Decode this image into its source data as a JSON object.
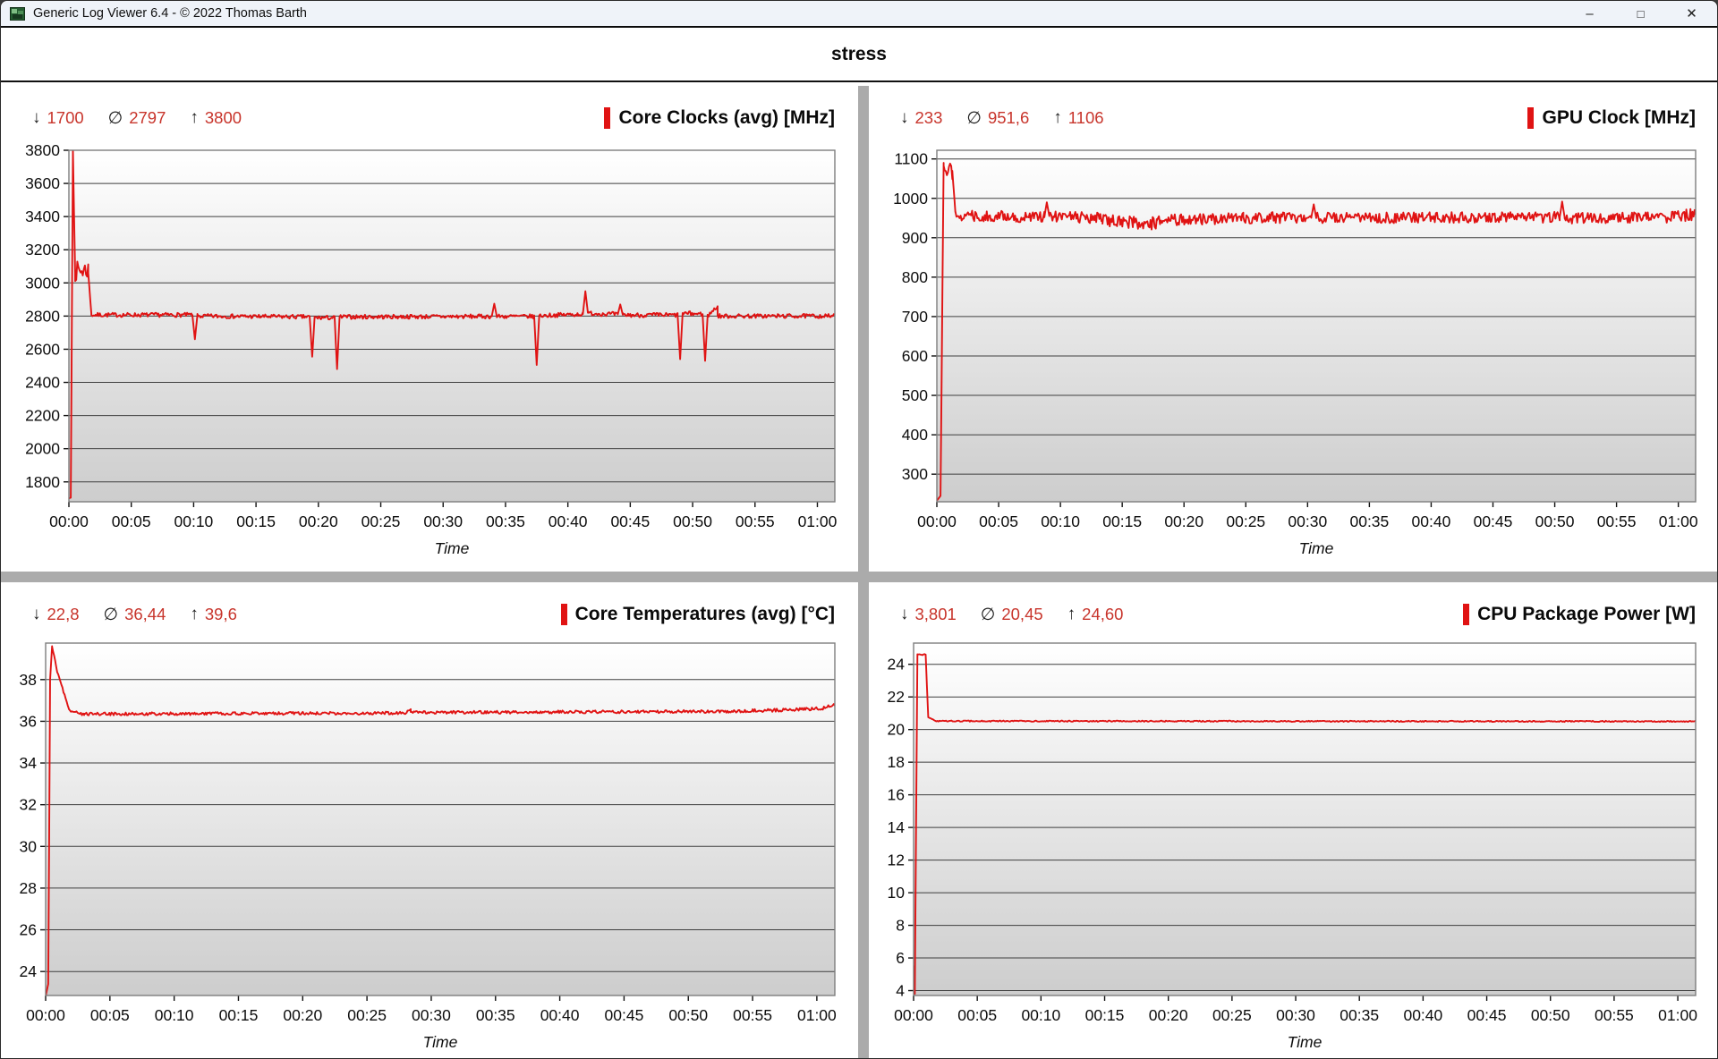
{
  "window": {
    "title": "Generic Log Viewer 6.4 - © 2022 Thomas Barth",
    "icon": "app-icon",
    "controls": {
      "minimize": "–",
      "maximize": "□",
      "close": "✕"
    }
  },
  "header": {
    "title": "stress"
  },
  "colors": {
    "accent_red": "#e01313",
    "stat_value_red": "#c8352c",
    "titlebar_bg": "#eff3f9",
    "divider_gray": "#ababab",
    "gridline": "#3f3f3f",
    "plot_border": "#7d7d7d",
    "plot_bg_top": "#ffffff",
    "plot_bg_bottom": "#cdcdcd",
    "axis_text": "#0d0d0d"
  },
  "stats_symbols": {
    "min": "↓",
    "avg": "∅",
    "max": "↑"
  },
  "time_axis": {
    "label": "Time",
    "tick_minutes": [
      0,
      5,
      10,
      15,
      20,
      25,
      30,
      35,
      40,
      45,
      50,
      55,
      60
    ],
    "tick_labels": [
      "00:00",
      "00:05",
      "00:10",
      "00:15",
      "00:20",
      "00:25",
      "00:30",
      "00:35",
      "00:40",
      "00:45",
      "00:50",
      "00:55",
      "01:00"
    ]
  },
  "chart_data": [
    {
      "type": "line",
      "title": "Core Clocks (avg) [MHz]",
      "stats": {
        "min": "1700",
        "avg": "2797",
        "max": "3800"
      },
      "ylim": [
        1680,
        3800
      ],
      "yticks": [
        1800,
        2000,
        2200,
        2400,
        2600,
        2800,
        3000,
        3200,
        3400,
        3600,
        3800
      ],
      "xlim": [
        0,
        61.4
      ],
      "segments": [
        [
          0.0,
          0.15,
          1700,
          1705,
          0
        ],
        [
          0.15,
          0.32,
          1705,
          3800,
          0
        ],
        [
          0.32,
          0.5,
          3800,
          3060,
          0
        ],
        [
          0.5,
          1.55,
          3070,
          3080,
          60
        ],
        [
          1.55,
          1.8,
          3060,
          2815,
          0
        ],
        [
          1.8,
          9.9,
          2807,
          2807,
          13
        ],
        [
          9.9,
          10.1,
          2807,
          2660,
          0
        ],
        [
          10.1,
          10.3,
          2660,
          2805,
          0
        ],
        [
          10.3,
          19.3,
          2800,
          2795,
          13
        ],
        [
          19.3,
          19.5,
          2795,
          2555,
          0
        ],
        [
          19.5,
          19.7,
          2555,
          2795,
          0
        ],
        [
          19.7,
          21.3,
          2790,
          2790,
          13
        ],
        [
          21.3,
          21.5,
          2790,
          2480,
          0
        ],
        [
          21.5,
          21.7,
          2480,
          2795,
          0
        ],
        [
          21.7,
          33.9,
          2795,
          2798,
          13
        ],
        [
          33.9,
          34.1,
          2798,
          2875,
          0
        ],
        [
          34.1,
          34.3,
          2875,
          2798,
          0
        ],
        [
          34.3,
          37.3,
          2798,
          2798,
          13
        ],
        [
          37.3,
          37.5,
          2798,
          2505,
          0
        ],
        [
          37.5,
          37.7,
          2505,
          2800,
          0
        ],
        [
          37.7,
          41.2,
          2802,
          2812,
          13
        ],
        [
          41.2,
          41.4,
          2812,
          2950,
          0
        ],
        [
          41.4,
          41.6,
          2950,
          2820,
          0
        ],
        [
          41.6,
          44.0,
          2818,
          2810,
          14
        ],
        [
          44.0,
          44.2,
          2810,
          2870,
          0
        ],
        [
          44.2,
          44.4,
          2870,
          2808,
          0
        ],
        [
          44.4,
          48.8,
          2806,
          2806,
          14
        ],
        [
          48.8,
          49.0,
          2806,
          2540,
          0
        ],
        [
          49.0,
          49.2,
          2540,
          2818,
          0
        ],
        [
          49.2,
          50.8,
          2816,
          2812,
          14
        ],
        [
          50.8,
          51.0,
          2812,
          2530,
          0
        ],
        [
          51.0,
          51.2,
          2530,
          2800,
          0
        ],
        [
          51.2,
          52.0,
          2800,
          2860,
          12
        ],
        [
          52.0,
          61.4,
          2800,
          2800,
          13
        ]
      ]
    },
    {
      "type": "line",
      "title": "GPU Clock [MHz]",
      "stats": {
        "min": "233",
        "avg": "951,6",
        "max": "1106"
      },
      "ylim": [
        230,
        1122
      ],
      "yticks": [
        300,
        400,
        500,
        600,
        700,
        800,
        900,
        1000,
        1100
      ],
      "xlim": [
        0,
        61.4
      ],
      "segments": [
        [
          0.0,
          0.3,
          233,
          245,
          0
        ],
        [
          0.3,
          0.55,
          245,
          1090,
          0
        ],
        [
          0.55,
          1.25,
          1085,
          1070,
          22
        ],
        [
          1.25,
          1.5,
          1070,
          965,
          0
        ],
        [
          1.5,
          8.7,
          957,
          952,
          14
        ],
        [
          8.7,
          8.9,
          952,
          990,
          0
        ],
        [
          8.9,
          9.1,
          990,
          955,
          0
        ],
        [
          9.1,
          13.4,
          955,
          950,
          14
        ],
        [
          13.4,
          17.8,
          944,
          936,
          16
        ],
        [
          17.8,
          24.8,
          944,
          950,
          14
        ],
        [
          24.8,
          30.3,
          950,
          952,
          14
        ],
        [
          30.3,
          30.5,
          952,
          985,
          0
        ],
        [
          30.5,
          30.7,
          985,
          950,
          0
        ],
        [
          30.7,
          50.4,
          950,
          952,
          14
        ],
        [
          50.4,
          50.6,
          952,
          992,
          0
        ],
        [
          50.6,
          50.8,
          992,
          952,
          0
        ],
        [
          50.8,
          59.4,
          950,
          952,
          14
        ],
        [
          59.4,
          61.4,
          952,
          960,
          15
        ]
      ]
    },
    {
      "type": "line",
      "title": "Core Temperatures (avg) [°C]",
      "stats": {
        "min": "22,8",
        "avg": "36,44",
        "max": "39,6"
      },
      "ylim": [
        22.85,
        39.75
      ],
      "yticks": [
        24,
        26,
        28,
        30,
        32,
        34,
        36,
        38
      ],
      "xlim": [
        0,
        61.4
      ],
      "segments": [
        [
          0.0,
          0.2,
          22.8,
          23.4,
          0
        ],
        [
          0.2,
          0.35,
          23.4,
          38.0,
          0
        ],
        [
          0.35,
          0.5,
          38.0,
          39.6,
          0
        ],
        [
          0.5,
          0.9,
          39.6,
          38.4,
          0.05
        ],
        [
          0.9,
          1.8,
          38.4,
          36.6,
          0.05
        ],
        [
          1.8,
          3.0,
          36.55,
          36.3,
          0.06
        ],
        [
          3.0,
          28.0,
          36.35,
          36.4,
          0.07
        ],
        [
          28.0,
          28.4,
          36.4,
          36.6,
          0.05
        ],
        [
          28.4,
          55.0,
          36.42,
          36.48,
          0.07
        ],
        [
          55.0,
          60.3,
          36.5,
          36.6,
          0.08
        ],
        [
          60.3,
          61.4,
          36.6,
          36.8,
          0.08
        ]
      ]
    },
    {
      "type": "line",
      "title": "CPU Package Power [W]",
      "stats": {
        "min": "3,801",
        "avg": "20,45",
        "max": "24,60"
      },
      "ylim": [
        3.7,
        25.3
      ],
      "yticks": [
        4,
        6,
        8,
        10,
        12,
        14,
        16,
        18,
        20,
        22,
        24
      ],
      "xlim": [
        0,
        61.4
      ],
      "segments": [
        [
          0.0,
          0.1,
          5.5,
          3.801,
          0
        ],
        [
          0.1,
          0.3,
          3.801,
          24.6,
          0
        ],
        [
          0.3,
          0.95,
          24.6,
          24.6,
          0.04
        ],
        [
          0.95,
          1.15,
          24.6,
          20.75,
          0
        ],
        [
          1.15,
          1.7,
          20.75,
          20.55,
          0.03
        ],
        [
          1.7,
          61.4,
          20.52,
          20.5,
          0.035
        ]
      ]
    }
  ]
}
